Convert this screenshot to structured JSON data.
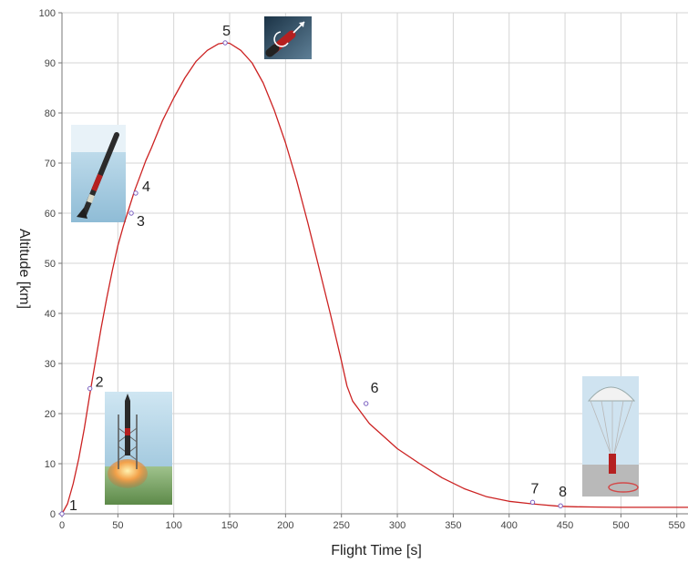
{
  "chart_data": {
    "type": "line",
    "title": "",
    "xlabel": "Flight Time [s]",
    "ylabel": "Altitude [km]",
    "xlim": [
      0,
      560
    ],
    "ylim": [
      0,
      100
    ],
    "x_ticks": [
      0,
      50,
      100,
      150,
      200,
      250,
      300,
      350,
      400,
      450,
      500,
      550
    ],
    "y_ticks": [
      0,
      10,
      20,
      30,
      40,
      50,
      60,
      70,
      80,
      90,
      100
    ],
    "grid": true,
    "line_color": "#cc2222",
    "series": [
      {
        "x": [
          0,
          5,
          10,
          15,
          20,
          25,
          30,
          35,
          40,
          45,
          50,
          55,
          60,
          65,
          70,
          75,
          80,
          90,
          100,
          110,
          120,
          130,
          140,
          146,
          150,
          160,
          170,
          180,
          190,
          200,
          210,
          220,
          230,
          240,
          250,
          255,
          260,
          265,
          270,
          275,
          280,
          290,
          300,
          320,
          340,
          360,
          380,
          400,
          420,
          430,
          440,
          446,
          460,
          480,
          500,
          520,
          540,
          560
        ],
        "y": [
          0,
          2,
          6,
          11,
          17,
          24,
          30.5,
          37,
          43,
          48.5,
          53.5,
          57.5,
          61,
          64.5,
          67.5,
          70.5,
          73,
          78.5,
          83,
          87,
          90.3,
          92.5,
          93.8,
          94,
          93.9,
          92.5,
          90,
          86,
          80.5,
          74,
          66.5,
          58,
          49,
          40,
          30.5,
          25.5,
          22.5,
          21,
          19.5,
          18,
          17,
          15,
          13,
          10,
          7.2,
          5,
          3.4,
          2.5,
          2.0,
          1.8,
          1.6,
          1.5,
          1.4,
          1.35,
          1.3,
          1.3,
          1.3,
          1.3
        ]
      }
    ],
    "events": [
      {
        "label": "1",
        "x": 0,
        "y": 0
      },
      {
        "label": "2",
        "x": 25,
        "y": 25
      },
      {
        "label": "3",
        "x": 62,
        "y": 60
      },
      {
        "label": "4",
        "x": 66,
        "y": 64
      },
      {
        "label": "5",
        "x": 146,
        "y": 94
      },
      {
        "label": "6",
        "x": 272,
        "y": 22
      },
      {
        "label": "7",
        "x": 421,
        "y": 2.3
      },
      {
        "label": "8",
        "x": 446,
        "y": 1.6
      }
    ],
    "images": [
      {
        "name": "rocket-launch-pad-image"
      },
      {
        "name": "rocket-ascent-image"
      },
      {
        "name": "payload-separation-image"
      },
      {
        "name": "parachute-landing-image"
      }
    ]
  }
}
